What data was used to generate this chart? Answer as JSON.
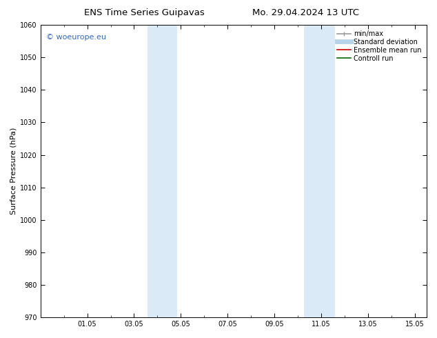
{
  "title_left": "ENS Time Series Guipavas",
  "title_right": "Mo. 29.04.2024 13 UTC",
  "ylabel": "Surface Pressure (hPa)",
  "ylim": [
    970,
    1060
  ],
  "yticks": [
    970,
    980,
    990,
    1000,
    1010,
    1020,
    1030,
    1040,
    1050,
    1060
  ],
  "xlim": [
    0.0,
    16.5
  ],
  "xtick_labels": [
    "01.05",
    "03.05",
    "05.05",
    "07.05",
    "09.05",
    "11.05",
    "13.05",
    "15.05"
  ],
  "xtick_positions": [
    2.0,
    4.0,
    6.0,
    8.0,
    10.0,
    12.0,
    14.0,
    16.0
  ],
  "shaded_bands": [
    {
      "x_start": 4.58,
      "x_end": 5.17
    },
    {
      "x_start": 5.17,
      "x_end": 5.83
    },
    {
      "x_start": 11.25,
      "x_end": 11.83
    },
    {
      "x_start": 11.83,
      "x_end": 12.58
    }
  ],
  "shaded_color": "#daeaf7",
  "watermark_text": "© woeurope.eu",
  "watermark_color": "#3366cc",
  "legend_items": [
    {
      "label": "min/max",
      "color": "#999999",
      "lw": 1.2,
      "style": "caps"
    },
    {
      "label": "Standard deviation",
      "color": "#b8d4e8",
      "lw": 5,
      "style": "line"
    },
    {
      "label": "Ensemble mean run",
      "color": "#cc0000",
      "lw": 1.2,
      "style": "line"
    },
    {
      "label": "Controll run",
      "color": "#006600",
      "lw": 1.2,
      "style": "line"
    }
  ],
  "bg_color": "#ffffff",
  "title_fontsize": 9.5,
  "ylabel_fontsize": 8,
  "tick_fontsize": 7,
  "watermark_fontsize": 8,
  "legend_fontsize": 7
}
